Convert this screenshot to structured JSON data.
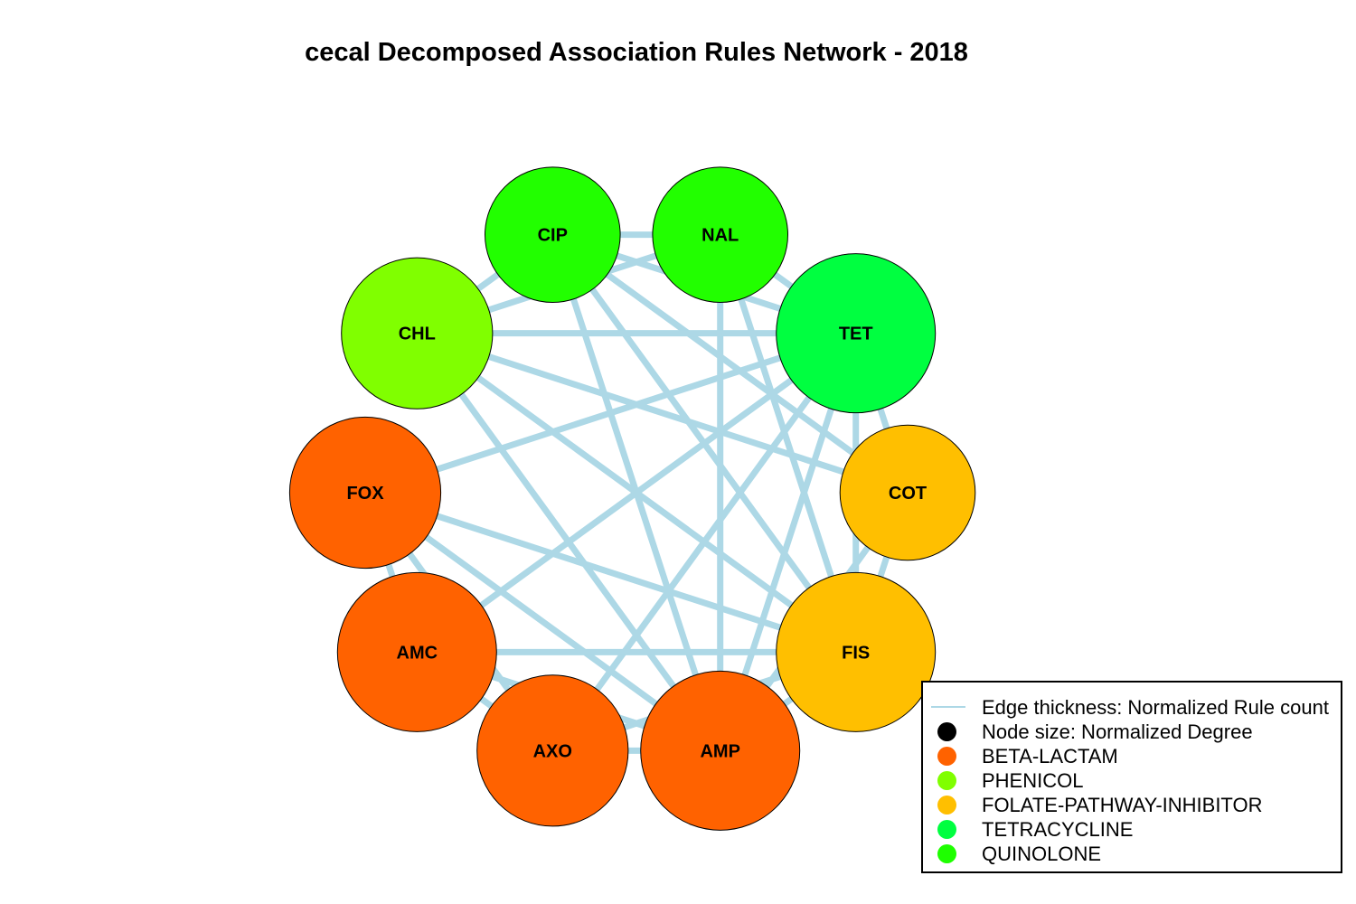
{
  "title": "cecal Decomposed Association Rules Network - 2018",
  "colors": {
    "edge": "#add8e6",
    "beta_lactam": "#ff6200",
    "phenicol": "#80ff00",
    "folate_pathway_inhibitor": "#ffbf00",
    "tetracycline": "#00ff40",
    "quinolone": "#1eff00"
  },
  "nodes": [
    {
      "id": "CIP",
      "label": "CIP",
      "class": "QUINOLONE",
      "color": "#22ff00",
      "size": 0.85
    },
    {
      "id": "NAL",
      "label": "NAL",
      "class": "QUINOLONE",
      "color": "#22ff00",
      "size": 0.85
    },
    {
      "id": "TET",
      "label": "TET",
      "class": "TETRACYCLINE",
      "color": "#00ff40",
      "size": 1.0
    },
    {
      "id": "COT",
      "label": "COT",
      "class": "FOLATE-PATHWAY-INHIBITOR",
      "color": "#ffbf00",
      "size": 0.85
    },
    {
      "id": "FIS",
      "label": "FIS",
      "class": "FOLATE-PATHWAY-INHIBITOR",
      "color": "#ffbf00",
      "size": 1.0
    },
    {
      "id": "AMP",
      "label": "AMP",
      "class": "BETA-LACTAM",
      "color": "#ff6200",
      "size": 1.0
    },
    {
      "id": "AXO",
      "label": "AXO",
      "class": "BETA-LACTAM",
      "color": "#ff6200",
      "size": 0.95
    },
    {
      "id": "AMC",
      "label": "AMC",
      "class": "BETA-LACTAM",
      "color": "#ff6200",
      "size": 1.0
    },
    {
      "id": "FOX",
      "label": "FOX",
      "class": "BETA-LACTAM",
      "color": "#ff6200",
      "size": 0.95
    },
    {
      "id": "CHL",
      "label": "CHL",
      "class": "PHENICOL",
      "color": "#80ff00",
      "size": 0.95
    }
  ],
  "edges": [
    [
      "CIP",
      "NAL"
    ],
    [
      "CIP",
      "TET"
    ],
    [
      "CIP",
      "CHL"
    ],
    [
      "CIP",
      "FIS"
    ],
    [
      "CIP",
      "AMP"
    ],
    [
      "CIP",
      "COT"
    ],
    [
      "NAL",
      "TET"
    ],
    [
      "NAL",
      "CHL"
    ],
    [
      "NAL",
      "FIS"
    ],
    [
      "NAL",
      "AMP"
    ],
    [
      "TET",
      "CHL"
    ],
    [
      "TET",
      "FOX"
    ],
    [
      "TET",
      "AMC"
    ],
    [
      "TET",
      "AXO"
    ],
    [
      "TET",
      "AMP"
    ],
    [
      "TET",
      "FIS"
    ],
    [
      "TET",
      "COT"
    ],
    [
      "CHL",
      "FIS"
    ],
    [
      "CHL",
      "AMP"
    ],
    [
      "CHL",
      "COT"
    ],
    [
      "FOX",
      "FIS"
    ],
    [
      "FOX",
      "AMP"
    ],
    [
      "FOX",
      "AMC"
    ],
    [
      "FOX",
      "AXO"
    ],
    [
      "AMC",
      "FIS"
    ],
    [
      "AMC",
      "AXO"
    ],
    [
      "AMC",
      "AMP"
    ],
    [
      "AXO",
      "AMP"
    ],
    [
      "AXO",
      "FIS"
    ],
    [
      "AMP",
      "FIS"
    ],
    [
      "AMP",
      "COT"
    ],
    [
      "COT",
      "FIS"
    ]
  ],
  "legend": [
    {
      "type": "line",
      "label": "Edge thickness: Normalized Rule count",
      "color": "#add8e6"
    },
    {
      "type": "dot",
      "label": "Node size: Normalized Degree",
      "color": "#000000"
    },
    {
      "type": "dot",
      "label": "BETA-LACTAM",
      "color": "#ff6200"
    },
    {
      "type": "dot",
      "label": "PHENICOL",
      "color": "#80ff00"
    },
    {
      "type": "dot",
      "label": "FOLATE-PATHWAY-INHIBITOR",
      "color": "#ffbf00"
    },
    {
      "type": "dot",
      "label": "TETRACYCLINE",
      "color": "#00ff40"
    },
    {
      "type": "dot",
      "label": "QUINOLONE",
      "color": "#1eff00"
    }
  ]
}
